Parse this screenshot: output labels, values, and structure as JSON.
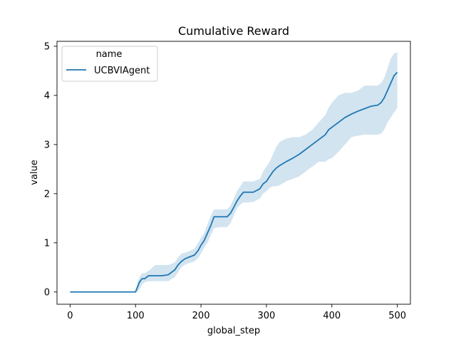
{
  "chart_data": {
    "type": "line",
    "title": "Cumulative Reward",
    "xlabel": "global_step",
    "ylabel": "value",
    "xlim": [
      -20,
      520
    ],
    "ylim": [
      -0.25,
      5.1
    ],
    "xticks": [
      0,
      100,
      200,
      300,
      400,
      500
    ],
    "yticks": [
      0,
      1,
      2,
      3,
      4,
      5
    ],
    "grid": false,
    "legend": {
      "title": "name",
      "placement": "top-left",
      "entries": [
        "UCBVIAgent"
      ]
    },
    "series": [
      {
        "name": "UCBVIAgent",
        "color": "#1f77b4",
        "band_color": "#1f77b4",
        "x": [
          0,
          50,
          100,
          103,
          106,
          110,
          114,
          120,
          130,
          140,
          150,
          160,
          165,
          170,
          175,
          180,
          190,
          196,
          200,
          205,
          210,
          215,
          220,
          230,
          240,
          245,
          250,
          255,
          260,
          265,
          270,
          280,
          290,
          295,
          300,
          305,
          310,
          315,
          320,
          330,
          340,
          350,
          360,
          370,
          380,
          390,
          395,
          400,
          410,
          420,
          430,
          440,
          450,
          460,
          470,
          475,
          480,
          485,
          490,
          495,
          500
        ],
        "values": [
          0,
          0,
          0,
          0.1,
          0.2,
          0.27,
          0.27,
          0.33,
          0.33,
          0.33,
          0.35,
          0.45,
          0.55,
          0.62,
          0.67,
          0.7,
          0.75,
          0.85,
          0.95,
          1.05,
          1.2,
          1.35,
          1.53,
          1.53,
          1.53,
          1.6,
          1.72,
          1.85,
          1.95,
          2.03,
          2.03,
          2.03,
          2.1,
          2.2,
          2.25,
          2.35,
          2.45,
          2.52,
          2.57,
          2.65,
          2.72,
          2.8,
          2.9,
          3.0,
          3.1,
          3.2,
          3.3,
          3.35,
          3.45,
          3.55,
          3.62,
          3.68,
          3.73,
          3.78,
          3.8,
          3.85,
          3.95,
          4.1,
          4.25,
          4.4,
          4.47
        ],
        "lower": [
          0,
          0,
          0,
          0,
          0.05,
          0.15,
          0.2,
          0.22,
          0.22,
          0.22,
          0.22,
          0.3,
          0.4,
          0.5,
          0.55,
          0.58,
          0.62,
          0.7,
          0.78,
          0.9,
          1.0,
          1.15,
          1.3,
          1.32,
          1.32,
          1.4,
          1.55,
          1.7,
          1.78,
          1.82,
          1.82,
          1.83,
          1.9,
          2.0,
          2.05,
          2.12,
          2.15,
          2.15,
          2.17,
          2.25,
          2.3,
          2.35,
          2.45,
          2.55,
          2.65,
          2.65,
          2.7,
          2.72,
          2.85,
          3.0,
          3.15,
          3.18,
          3.2,
          3.2,
          3.2,
          3.22,
          3.3,
          3.45,
          3.55,
          3.65,
          3.75
        ],
        "upper": [
          0,
          0,
          0,
          0.2,
          0.3,
          0.38,
          0.38,
          0.43,
          0.55,
          0.55,
          0.55,
          0.6,
          0.7,
          0.78,
          0.8,
          0.82,
          0.88,
          1.0,
          1.1,
          1.2,
          1.38,
          1.55,
          1.68,
          1.68,
          1.68,
          1.75,
          1.9,
          2.05,
          2.15,
          2.25,
          2.25,
          2.25,
          2.3,
          2.45,
          2.55,
          2.65,
          2.8,
          2.95,
          3.05,
          3.12,
          3.15,
          3.15,
          3.2,
          3.3,
          3.45,
          3.6,
          3.75,
          3.85,
          4.0,
          4.05,
          4.05,
          4.1,
          4.2,
          4.2,
          4.2,
          4.25,
          4.35,
          4.55,
          4.75,
          4.85,
          4.88
        ]
      }
    ]
  }
}
